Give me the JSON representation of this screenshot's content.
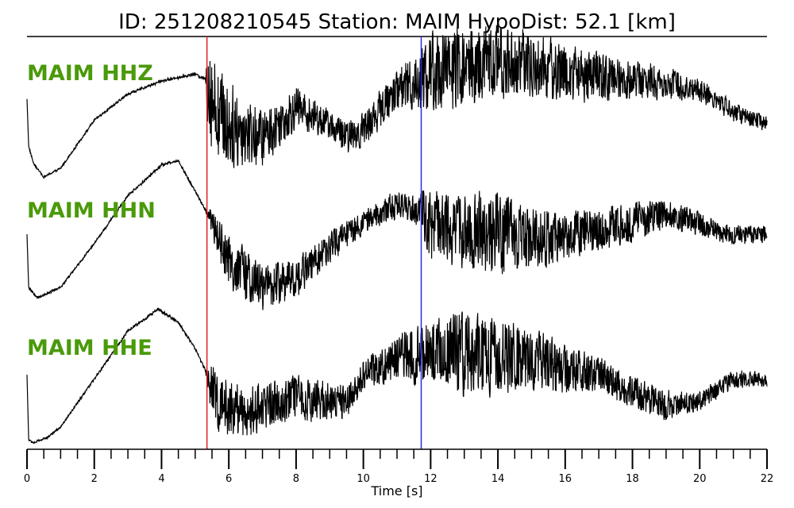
{
  "chart_data": {
    "type": "line",
    "title": "ID: 251208210545   Station: MAIM   HypoDist:    52.1 [km]",
    "xlabel": "Time [s]",
    "xlim": [
      0,
      22
    ],
    "xticks_major": [
      0,
      2,
      4,
      6,
      8,
      10,
      12,
      14,
      16,
      18,
      20,
      22
    ],
    "xticks_major_labels": [
      "0",
      "2",
      "4",
      "6",
      "8",
      "10",
      "12",
      "14",
      "16",
      "18",
      "20",
      "22"
    ],
    "xtick_minor_step": 0.5,
    "grid": false,
    "colors": {
      "trace": "#000000",
      "label": "#4a9a0a",
      "p_pick": "#e02020",
      "s_pick": "#2a2ae0"
    },
    "picks": [
      {
        "phase": "P",
        "time": 5.35
      },
      {
        "phase": "S",
        "time": 11.72
      }
    ],
    "series": [
      {
        "name": "MAIM HHZ",
        "trend": [
          [
            0,
            0.0
          ],
          [
            0.05,
            -0.55
          ],
          [
            0.2,
            -0.75
          ],
          [
            0.5,
            -0.9
          ],
          [
            1,
            -0.8
          ],
          [
            2,
            -0.25
          ],
          [
            3,
            0.05
          ],
          [
            4,
            0.2
          ],
          [
            5,
            0.28
          ],
          [
            5.4,
            0.2
          ],
          [
            5.6,
            -0.1
          ],
          [
            6,
            -0.3
          ],
          [
            7,
            -0.45
          ],
          [
            8,
            -0.1
          ],
          [
            9,
            -0.3
          ],
          [
            9.5,
            -0.45
          ],
          [
            10,
            -0.35
          ],
          [
            11,
            0.1
          ],
          [
            12,
            0.3
          ],
          [
            13,
            0.35
          ],
          [
            14,
            0.42
          ],
          [
            15,
            0.38
          ],
          [
            16,
            0.3
          ],
          [
            17,
            0.25
          ],
          [
            18,
            0.22
          ],
          [
            19,
            0.18
          ],
          [
            20,
            0.1
          ],
          [
            21,
            -0.15
          ],
          [
            22,
            -0.3
          ]
        ],
        "noise": [
          [
            0,
            0
          ],
          [
            5.3,
            0.01
          ],
          [
            5.4,
            0.6
          ],
          [
            5.6,
            0.5
          ],
          [
            7,
            0.28
          ],
          [
            9,
            0.15
          ],
          [
            11,
            0.2
          ],
          [
            12,
            0.42
          ],
          [
            14,
            0.38
          ],
          [
            16,
            0.3
          ],
          [
            18,
            0.2
          ],
          [
            20,
            0.12
          ],
          [
            22,
            0.08
          ]
        ]
      },
      {
        "name": "MAIM HHN",
        "trend": [
          [
            0,
            0.0
          ],
          [
            0.05,
            -0.6
          ],
          [
            0.3,
            -0.72
          ],
          [
            1,
            -0.6
          ],
          [
            2,
            -0.1
          ],
          [
            3,
            0.45
          ],
          [
            4,
            0.8
          ],
          [
            4.5,
            0.85
          ],
          [
            5,
            0.5
          ],
          [
            5.5,
            0.15
          ],
          [
            6,
            -0.3
          ],
          [
            7,
            -0.6
          ],
          [
            8,
            -0.5
          ],
          [
            9,
            -0.15
          ],
          [
            10,
            0.15
          ],
          [
            11,
            0.35
          ],
          [
            11.7,
            0.3
          ],
          [
            12,
            0.1
          ],
          [
            13,
            0.05
          ],
          [
            14,
            0.02
          ],
          [
            15,
            -0.05
          ],
          [
            16,
            0.0
          ],
          [
            17,
            0.05
          ],
          [
            18,
            0.15
          ],
          [
            19,
            0.25
          ],
          [
            20,
            0.12
          ],
          [
            21,
            0.0
          ],
          [
            22,
            0.0
          ]
        ],
        "noise": [
          [
            0,
            0
          ],
          [
            5.3,
            0.01
          ],
          [
            5.5,
            0.15
          ],
          [
            6,
            0.28
          ],
          [
            8,
            0.2
          ],
          [
            10,
            0.12
          ],
          [
            11.5,
            0.15
          ],
          [
            12,
            0.35
          ],
          [
            14,
            0.4
          ],
          [
            16,
            0.25
          ],
          [
            18,
            0.2
          ],
          [
            20,
            0.12
          ],
          [
            22,
            0.08
          ]
        ]
      },
      {
        "name": "MAIM HHE",
        "trend": [
          [
            0,
            0.0
          ],
          [
            0.05,
            -0.75
          ],
          [
            0.2,
            -0.78
          ],
          [
            0.6,
            -0.72
          ],
          [
            1,
            -0.6
          ],
          [
            2,
            -0.05
          ],
          [
            3,
            0.5
          ],
          [
            3.9,
            0.75
          ],
          [
            4.5,
            0.6
          ],
          [
            5,
            0.3
          ],
          [
            5.3,
            0.05
          ],
          [
            5.6,
            -0.3
          ],
          [
            6.5,
            -0.45
          ],
          [
            7,
            -0.35
          ],
          [
            8,
            -0.25
          ],
          [
            8.5,
            -0.3
          ],
          [
            9.5,
            -0.3
          ],
          [
            10,
            0.0
          ],
          [
            11,
            0.2
          ],
          [
            12,
            0.25
          ],
          [
            13,
            0.25
          ],
          [
            14,
            0.2
          ],
          [
            15,
            0.18
          ],
          [
            16,
            0.05
          ],
          [
            17,
            0.0
          ],
          [
            18,
            -0.2
          ],
          [
            19,
            -0.35
          ],
          [
            20,
            -0.3
          ],
          [
            21,
            -0.05
          ],
          [
            22,
            -0.05
          ]
        ],
        "noise": [
          [
            0,
            0
          ],
          [
            5.3,
            0.01
          ],
          [
            5.5,
            0.3
          ],
          [
            7,
            0.25
          ],
          [
            9,
            0.2
          ],
          [
            10,
            0.15
          ],
          [
            11.5,
            0.28
          ],
          [
            13,
            0.42
          ],
          [
            15,
            0.32
          ],
          [
            17,
            0.18
          ],
          [
            19,
            0.15
          ],
          [
            20,
            0.1
          ],
          [
            22,
            0.08
          ]
        ]
      }
    ]
  }
}
